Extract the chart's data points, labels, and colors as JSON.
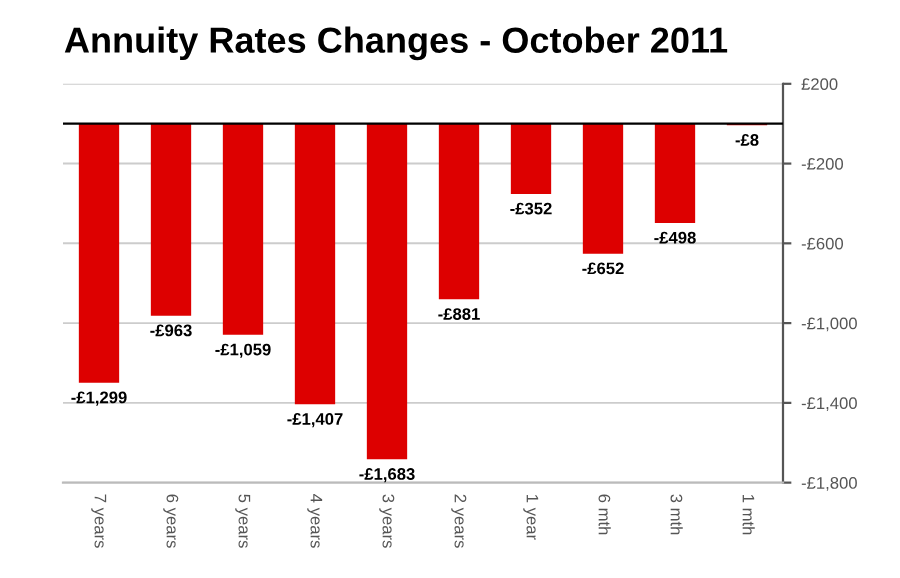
{
  "chart_data": {
    "type": "bar",
    "title": "Annuity Rates Changes - October 2011",
    "categories": [
      "7 years",
      "6 years",
      "5 years",
      "4 years",
      "3 years",
      "2 years",
      "1 year",
      "6 mth",
      "3 mth",
      "1 mth"
    ],
    "values": [
      -1299,
      -963,
      -1059,
      -1407,
      -1683,
      -881,
      -352,
      -652,
      -498,
      -8
    ],
    "value_labels": [
      "-£1,299",
      "-£963",
      "-£1,059",
      "-£1,407",
      "-£1,683",
      "-£881",
      "-£352",
      "-£652",
      "-£498",
      "-£8"
    ],
    "color": "#dd0000",
    "ylim": [
      -1800,
      200
    ],
    "yticks": [
      {
        "value": 200,
        "label": "£200"
      },
      {
        "value": -200,
        "label": "-£200"
      },
      {
        "value": -600,
        "label": "-£600"
      },
      {
        "value": -1000,
        "label": "-£1,000"
      },
      {
        "value": -1400,
        "label": "-£1,400"
      },
      {
        "value": -1800,
        "label": "-£1,800"
      }
    ],
    "grid": "y"
  }
}
